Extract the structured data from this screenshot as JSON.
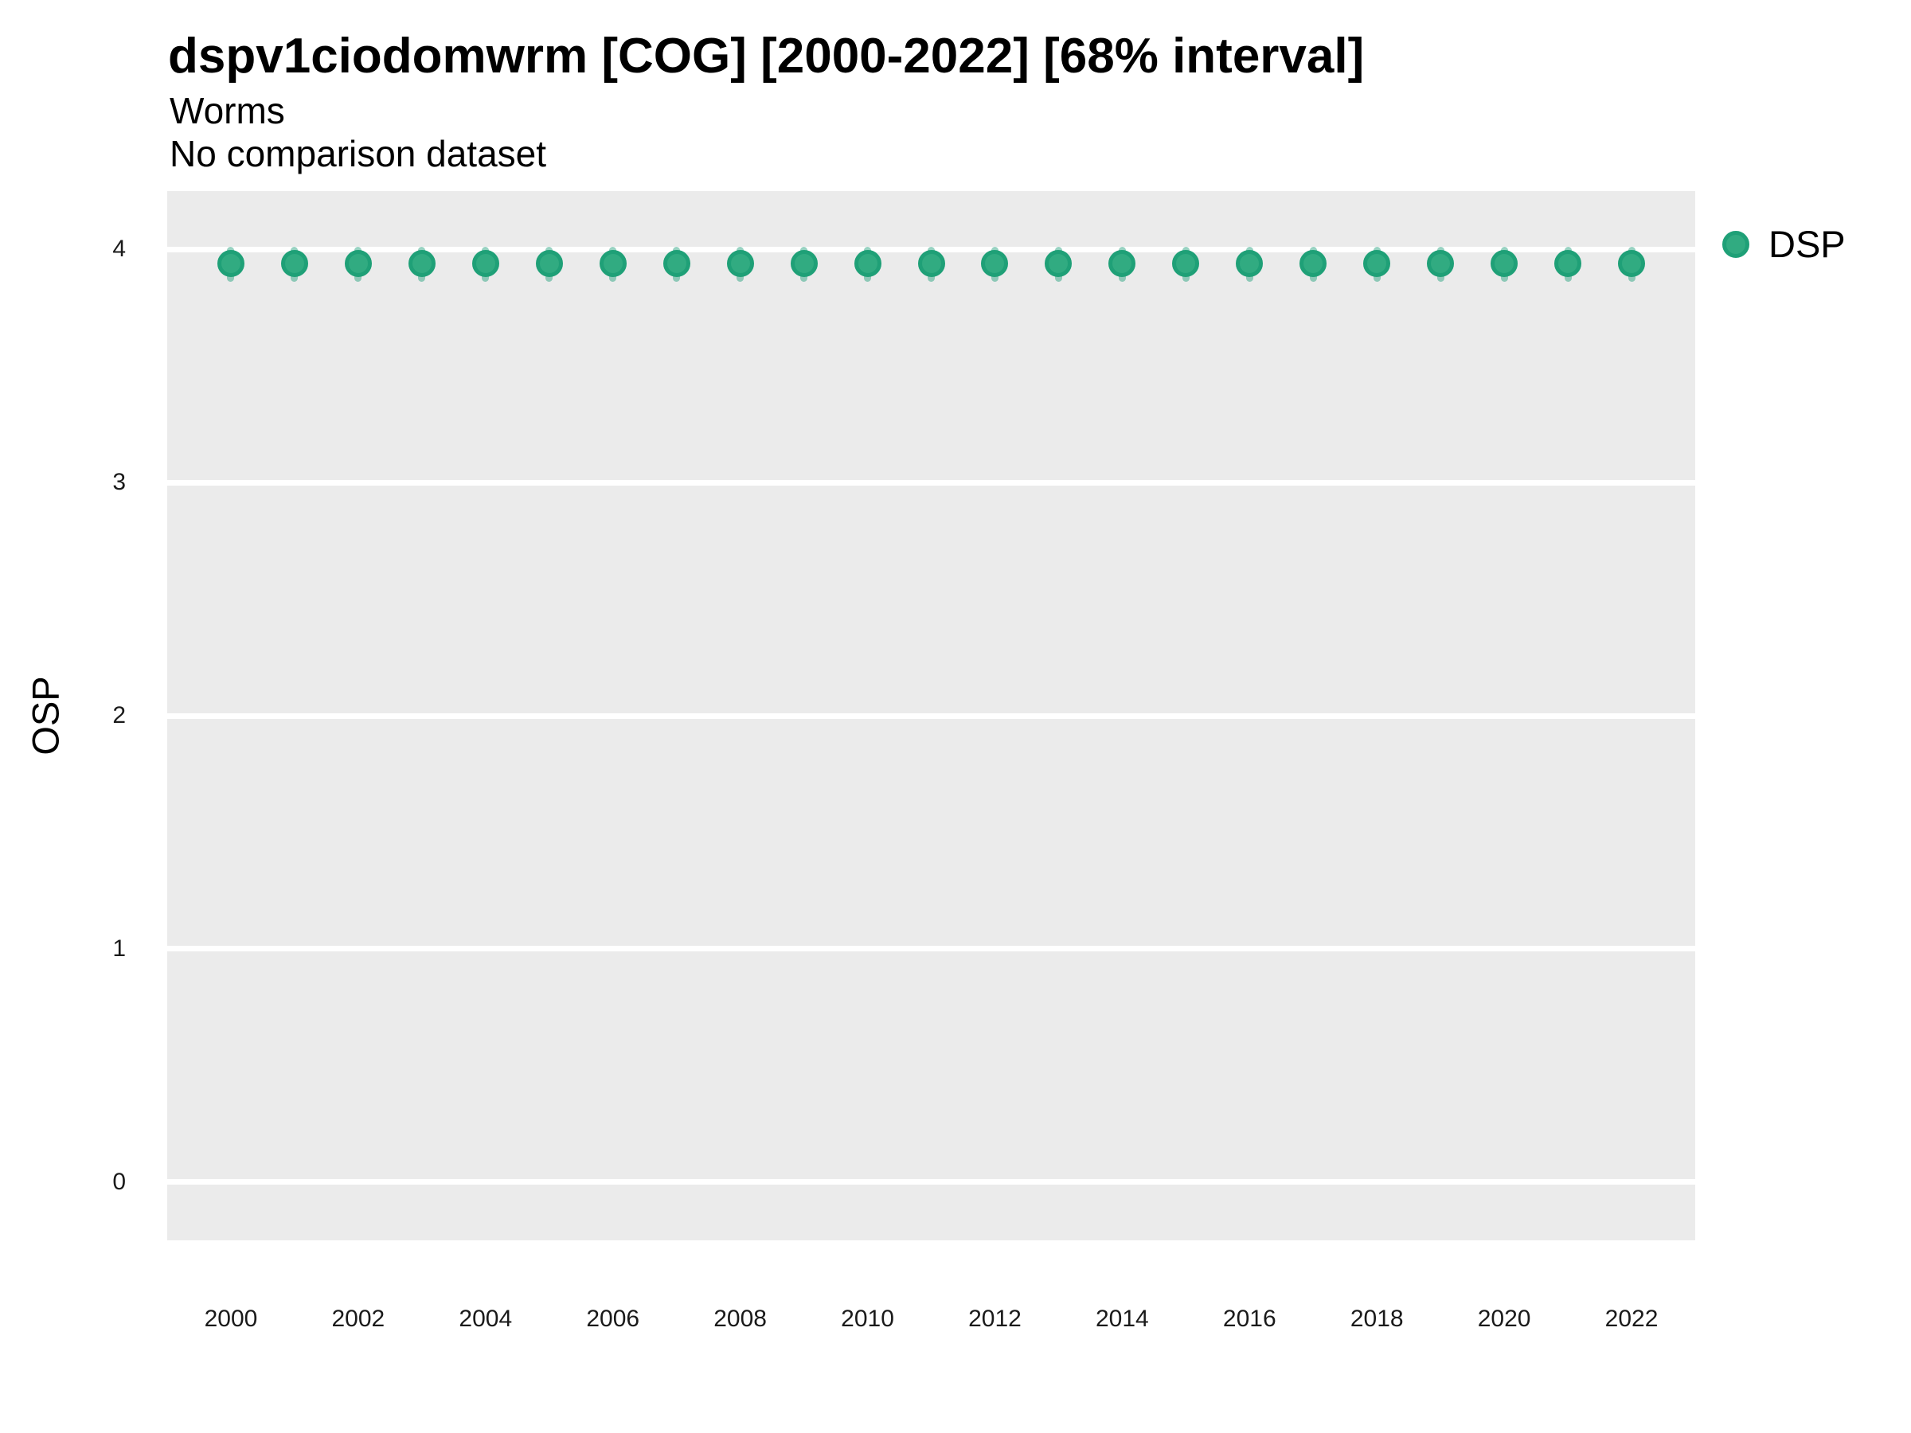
{
  "figure": {
    "title": "dspv1ciodomwrm [COG] [2000-2022] [68% interval]",
    "subtitle": "Worms",
    "comparison_note": "No comparison dataset",
    "y_axis_label": "OSP",
    "legend": {
      "label": "DSP",
      "marker_icon": "circle-icon",
      "marker_fill": "#31AB81",
      "marker_edge": "#1FA077"
    }
  },
  "chart_data": {
    "type": "scatter",
    "subtype": "pointrange",
    "title": "dspv1ciodomwrm [COG] [2000-2022] [68% interval]",
    "subtitle": "Worms",
    "note": "No comparison dataset",
    "xlabel": "",
    "ylabel": "OSP",
    "xlim": [
      1999,
      2023
    ],
    "ylim": [
      -0.25,
      4.25
    ],
    "x_ticks": [
      2000,
      2002,
      2004,
      2006,
      2008,
      2010,
      2012,
      2014,
      2016,
      2018,
      2020,
      2022
    ],
    "y_ticks": [
      0,
      1,
      2,
      3,
      4
    ],
    "grid": "horizontal-major-only",
    "legend_position": "right-top",
    "interval_level": "68%",
    "series": [
      {
        "name": "DSP",
        "point_fill": "#31AB81",
        "point_edge": "#1FA077",
        "interval_color": "rgba(27,158,119,0.45)",
        "x": [
          2000,
          2001,
          2002,
          2003,
          2004,
          2005,
          2006,
          2007,
          2008,
          2009,
          2010,
          2011,
          2012,
          2013,
          2014,
          2015,
          2016,
          2017,
          2018,
          2019,
          2020,
          2021,
          2022
        ],
        "y": [
          3.94,
          3.94,
          3.94,
          3.94,
          3.94,
          3.94,
          3.94,
          3.94,
          3.94,
          3.94,
          3.94,
          3.94,
          3.94,
          3.94,
          3.94,
          3.94,
          3.94,
          3.94,
          3.94,
          3.94,
          3.94,
          3.94,
          3.94
        ],
        "y_lo": [
          3.86,
          3.86,
          3.86,
          3.86,
          3.86,
          3.86,
          3.86,
          3.86,
          3.86,
          3.86,
          3.86,
          3.86,
          3.86,
          3.86,
          3.86,
          3.86,
          3.86,
          3.86,
          3.86,
          3.86,
          3.86,
          3.86,
          3.86
        ],
        "y_hi": [
          4.01,
          4.01,
          4.01,
          4.01,
          4.01,
          4.01,
          4.01,
          4.01,
          4.01,
          4.01,
          4.01,
          4.01,
          4.01,
          4.01,
          4.01,
          4.01,
          4.01,
          4.01,
          4.01,
          4.01,
          4.01,
          4.01,
          4.01
        ]
      }
    ],
    "style": {
      "panel_bg": "#EBEBEB",
      "grid_color": "#FFFFFF"
    }
  }
}
